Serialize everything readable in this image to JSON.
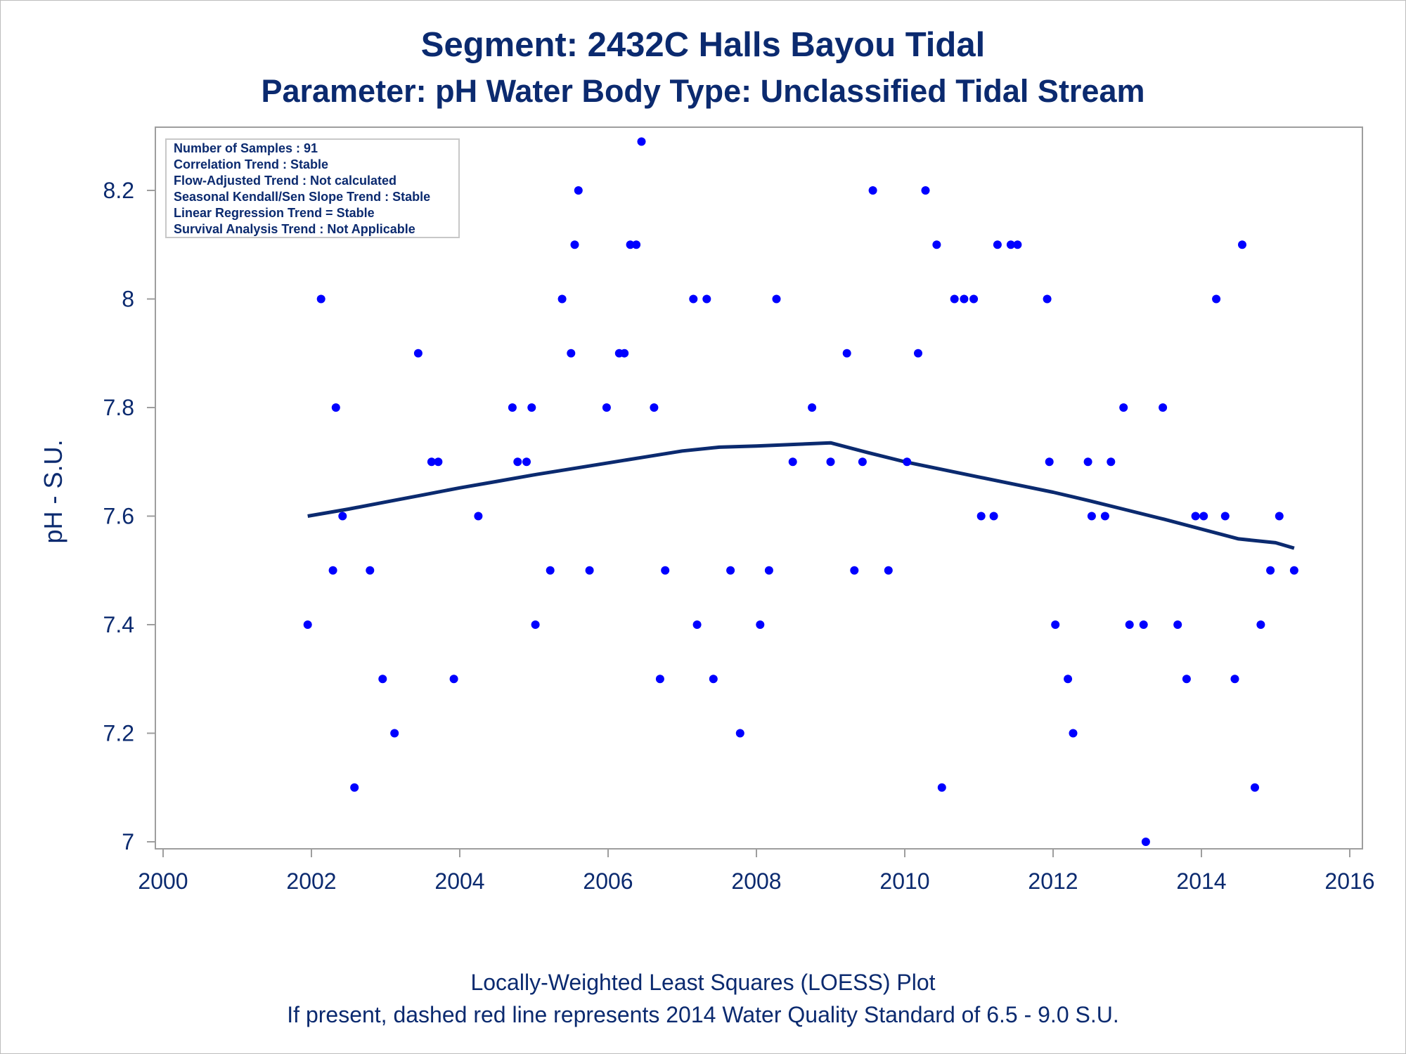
{
  "title": "Segment: 2432C  Halls Bayou Tidal",
  "subtitle": "Parameter: pH   Water Body Type: Unclassified Tidal Stream",
  "footnote1": "Locally-Weighted Least Squares (LOESS) Plot",
  "footnote2": "If present, dashed red line represents 2014 Water Quality Standard of 6.5 - 9.0 S.U.",
  "inset": [
    "Number of Samples : 91",
    "Correlation Trend : Stable",
    "Flow-Adjusted Trend : Not calculated",
    "Seasonal Kendall/Sen Slope Trend : Stable",
    "Linear Regression Trend = Stable",
    "Survival Analysis Trend : Not Applicable"
  ],
  "colors": {
    "text": "#0b2a6f",
    "points": "#0000ff",
    "loess": "#0b2a6f",
    "frame": "#9e9e9e"
  },
  "chart_data": {
    "type": "scatter",
    "xlabel": "",
    "ylabel": "pH - S.U.",
    "xlim": [
      2000,
      2016
    ],
    "ylim": [
      6.98,
      8.32
    ],
    "xticks": [
      2000,
      2002,
      2004,
      2006,
      2008,
      2010,
      2012,
      2014,
      2016
    ],
    "xtick_labels": [
      "2000",
      "2002",
      "2004",
      "2006",
      "2008",
      "2010",
      "2012",
      "2014",
      "2016"
    ],
    "yticks": [
      7.0,
      7.2,
      7.4,
      7.6,
      7.8,
      8.0,
      8.2
    ],
    "ytick_labels": [
      "7",
      "7.2",
      "7.4",
      "7.6",
      "7.8",
      "8",
      "8.2"
    ],
    "grid": false,
    "points": [
      [
        2001.95,
        7.4
      ],
      [
        2002.13,
        8.0
      ],
      [
        2002.29,
        7.5
      ],
      [
        2002.33,
        7.8
      ],
      [
        2002.42,
        7.6
      ],
      [
        2002.58,
        7.1
      ],
      [
        2002.79,
        7.5
      ],
      [
        2002.96,
        7.3
      ],
      [
        2003.12,
        7.2
      ],
      [
        2003.44,
        7.9
      ],
      [
        2003.62,
        7.7
      ],
      [
        2003.71,
        7.7
      ],
      [
        2003.92,
        7.3
      ],
      [
        2004.25,
        7.6
      ],
      [
        2004.71,
        7.8
      ],
      [
        2004.78,
        7.7
      ],
      [
        2004.9,
        7.7
      ],
      [
        2004.97,
        7.8
      ],
      [
        2005.02,
        7.4
      ],
      [
        2005.22,
        7.5
      ],
      [
        2005.38,
        8.0
      ],
      [
        2005.5,
        7.9
      ],
      [
        2005.55,
        8.1
      ],
      [
        2005.6,
        8.2
      ],
      [
        2005.75,
        7.5
      ],
      [
        2005.98,
        7.8
      ],
      [
        2006.15,
        7.9
      ],
      [
        2006.22,
        7.9
      ],
      [
        2006.3,
        8.1
      ],
      [
        2006.38,
        8.1
      ],
      [
        2006.45,
        8.29
      ],
      [
        2006.62,
        7.8
      ],
      [
        2006.7,
        7.3
      ],
      [
        2006.77,
        7.5
      ],
      [
        2007.15,
        8.0
      ],
      [
        2007.2,
        7.4
      ],
      [
        2007.33,
        8.0
      ],
      [
        2007.42,
        7.3
      ],
      [
        2007.65,
        7.5
      ],
      [
        2007.78,
        7.2
      ],
      [
        2008.05,
        7.4
      ],
      [
        2008.17,
        7.5
      ],
      [
        2008.27,
        8.0
      ],
      [
        2008.49,
        7.7
      ],
      [
        2008.75,
        7.8
      ],
      [
        2009.0,
        7.7
      ],
      [
        2009.22,
        7.9
      ],
      [
        2009.32,
        7.5
      ],
      [
        2009.43,
        7.7
      ],
      [
        2009.57,
        8.2
      ],
      [
        2009.78,
        7.5
      ],
      [
        2010.03,
        7.7
      ],
      [
        2010.18,
        7.9
      ],
      [
        2010.28,
        8.2
      ],
      [
        2010.43,
        8.1
      ],
      [
        2010.5,
        7.1
      ],
      [
        2010.67,
        8.0
      ],
      [
        2010.8,
        8.0
      ],
      [
        2010.93,
        8.0
      ],
      [
        2011.03,
        7.6
      ],
      [
        2011.2,
        7.6
      ],
      [
        2011.25,
        8.1
      ],
      [
        2011.43,
        8.1
      ],
      [
        2011.52,
        8.1
      ],
      [
        2011.92,
        8.0
      ],
      [
        2011.95,
        7.7
      ],
      [
        2012.03,
        7.4
      ],
      [
        2012.2,
        7.3
      ],
      [
        2012.27,
        7.2
      ],
      [
        2012.47,
        7.7
      ],
      [
        2012.52,
        7.6
      ],
      [
        2012.7,
        7.6
      ],
      [
        2012.78,
        7.7
      ],
      [
        2012.95,
        7.8
      ],
      [
        2013.03,
        7.4
      ],
      [
        2013.22,
        7.4
      ],
      [
        2013.25,
        7.0
      ],
      [
        2013.48,
        7.8
      ],
      [
        2013.68,
        7.4
      ],
      [
        2013.8,
        7.3
      ],
      [
        2013.92,
        7.6
      ],
      [
        2014.03,
        7.6
      ],
      [
        2014.2,
        8.0
      ],
      [
        2014.32,
        7.6
      ],
      [
        2014.45,
        7.3
      ],
      [
        2014.55,
        8.1
      ],
      [
        2014.72,
        7.1
      ],
      [
        2014.8,
        7.4
      ],
      [
        2014.93,
        7.5
      ],
      [
        2015.05,
        7.6
      ],
      [
        2015.25,
        7.5
      ]
    ],
    "loess": [
      [
        2001.95,
        7.6
      ],
      [
        2002.5,
        7.613
      ],
      [
        2003.0,
        7.626
      ],
      [
        2003.5,
        7.639
      ],
      [
        2004.0,
        7.652
      ],
      [
        2004.5,
        7.664
      ],
      [
        2005.0,
        7.676
      ],
      [
        2005.5,
        7.687
      ],
      [
        2006.0,
        7.698
      ],
      [
        2006.5,
        7.709
      ],
      [
        2007.0,
        7.72
      ],
      [
        2007.5,
        7.727
      ],
      [
        2008.0,
        7.729
      ],
      [
        2008.5,
        7.732
      ],
      [
        2009.0,
        7.735
      ],
      [
        2009.5,
        7.717
      ],
      [
        2010.0,
        7.7
      ],
      [
        2010.5,
        7.686
      ],
      [
        2011.0,
        7.672
      ],
      [
        2011.5,
        7.658
      ],
      [
        2012.0,
        7.644
      ],
      [
        2012.5,
        7.628
      ],
      [
        2013.0,
        7.611
      ],
      [
        2013.5,
        7.594
      ],
      [
        2014.0,
        7.576
      ],
      [
        2014.5,
        7.558
      ],
      [
        2015.0,
        7.551
      ],
      [
        2015.25,
        7.541
      ]
    ]
  }
}
